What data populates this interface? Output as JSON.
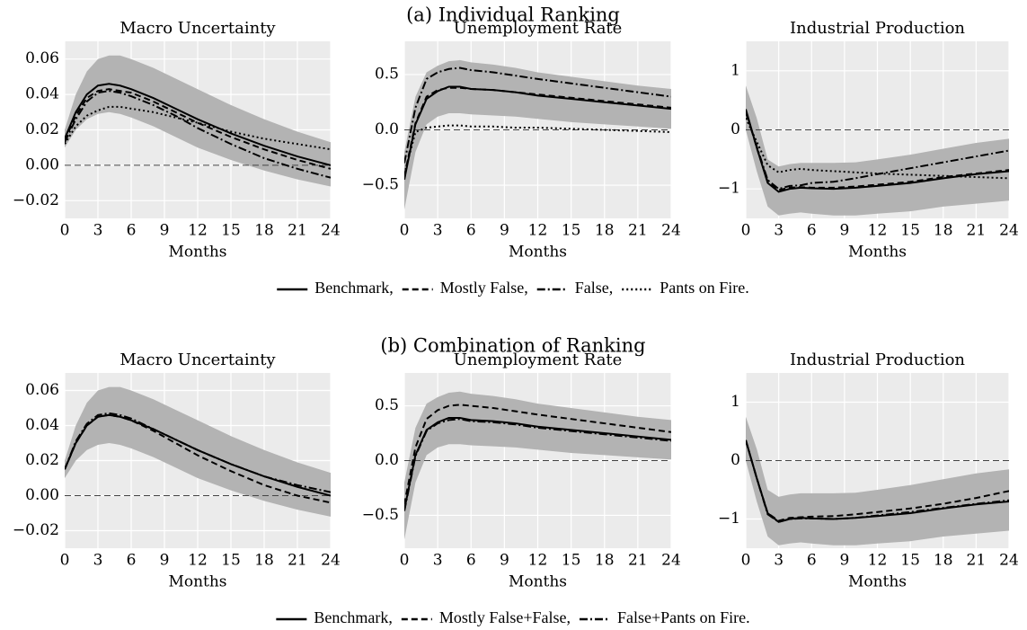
{
  "sections": [
    {
      "title": "(a) Individual Ranking"
    },
    {
      "title": "(b) Combination of Ranking"
    }
  ],
  "chart_data": [
    {
      "type": "line",
      "title": "Macro Uncertainty",
      "xlabel": "Months",
      "x": [
        0,
        1,
        2,
        3,
        4,
        5,
        6,
        8,
        10,
        12,
        15,
        18,
        21,
        24
      ],
      "xlim": [
        0,
        24
      ],
      "xticks": [
        0,
        3,
        6,
        9,
        12,
        15,
        18,
        21,
        24
      ],
      "ylim": [
        -0.03,
        0.07
      ],
      "yticks": [
        {
          "value": -0.02,
          "label": "−0.02"
        },
        {
          "value": 0,
          "label": "0.00"
        },
        0.02,
        0.04,
        0.06
      ],
      "grid": true,
      "hline": 0,
      "band": {
        "color": "#b3b3b3",
        "lower": [
          0.01,
          0.02,
          0.026,
          0.029,
          0.03,
          0.029,
          0.027,
          0.022,
          0.016,
          0.01,
          0.003,
          -0.003,
          -0.008,
          -0.012
        ],
        "upper": [
          0.02,
          0.04,
          0.053,
          0.06,
          0.062,
          0.062,
          0.06,
          0.055,
          0.049,
          0.043,
          0.034,
          0.026,
          0.019,
          0.013
        ]
      },
      "series": [
        {
          "name": "Benchmark,",
          "color": "#000000",
          "dash": "solid",
          "values": [
            0.015,
            0.03,
            0.04,
            0.045,
            0.046,
            0.045,
            0.043,
            0.038,
            0.032,
            0.026,
            0.018,
            0.011,
            0.005,
            0.0
          ]
        },
        {
          "name": "Mostly False,",
          "color": "#000000",
          "dash": "dashed",
          "values": [
            0.014,
            0.028,
            0.038,
            0.042,
            0.043,
            0.042,
            0.041,
            0.036,
            0.03,
            0.024,
            0.016,
            0.009,
            0.003,
            -0.002
          ]
        },
        {
          "name": "False,",
          "color": "#000000",
          "dash": "dashdot",
          "values": [
            0.013,
            0.026,
            0.036,
            0.041,
            0.042,
            0.041,
            0.039,
            0.034,
            0.028,
            0.021,
            0.012,
            0.004,
            -0.002,
            -0.007
          ]
        },
        {
          "name": "Pants on Fire.",
          "color": "#000000",
          "dash": "dotted",
          "values": [
            0.012,
            0.022,
            0.028,
            0.031,
            0.033,
            0.033,
            0.032,
            0.03,
            0.027,
            0.024,
            0.019,
            0.015,
            0.012,
            0.009
          ]
        }
      ]
    },
    {
      "type": "line",
      "title": "Unemployment Rate",
      "xlabel": "Months",
      "x": [
        0,
        1,
        2,
        3,
        4,
        5,
        6,
        8,
        10,
        12,
        15,
        18,
        21,
        24
      ],
      "xlim": [
        0,
        24
      ],
      "xticks": [
        0,
        3,
        6,
        9,
        12,
        15,
        18,
        21,
        24
      ],
      "ylim": [
        -0.8,
        0.8
      ],
      "yticks": [
        {
          "value": -0.5,
          "label": "−0.5"
        },
        {
          "value": 0,
          "label": "0.0"
        },
        0.5
      ],
      "grid": true,
      "hline": 0,
      "band": {
        "color": "#b3b3b3",
        "lower": [
          -0.72,
          -0.2,
          0.05,
          0.12,
          0.15,
          0.15,
          0.14,
          0.13,
          0.12,
          0.1,
          0.07,
          0.05,
          0.03,
          0.01
        ],
        "upper": [
          -0.2,
          0.3,
          0.52,
          0.58,
          0.62,
          0.63,
          0.61,
          0.59,
          0.56,
          0.52,
          0.48,
          0.44,
          0.4,
          0.37
        ]
      },
      "series": [
        {
          "name": "Benchmark,",
          "color": "#000000",
          "dash": "solid",
          "values": [
            -0.45,
            0.05,
            0.28,
            0.35,
            0.39,
            0.39,
            0.37,
            0.36,
            0.34,
            0.31,
            0.28,
            0.25,
            0.22,
            0.19
          ]
        },
        {
          "name": "Mostly False,",
          "color": "#000000",
          "dash": "dashed",
          "values": [
            -0.42,
            0.06,
            0.3,
            0.36,
            0.38,
            0.38,
            0.37,
            0.36,
            0.34,
            0.32,
            0.29,
            0.26,
            0.23,
            0.2
          ]
        },
        {
          "name": "False,",
          "color": "#000000",
          "dash": "dashdot",
          "values": [
            -0.3,
            0.2,
            0.46,
            0.52,
            0.55,
            0.56,
            0.54,
            0.52,
            0.49,
            0.46,
            0.42,
            0.38,
            0.34,
            0.3
          ]
        },
        {
          "name": "Pants on Fire.",
          "color": "#000000",
          "dash": "dotted",
          "values": [
            -0.4,
            -0.02,
            0.02,
            0.03,
            0.04,
            0.04,
            0.03,
            0.03,
            0.02,
            0.02,
            0.01,
            0.0,
            -0.01,
            -0.02
          ]
        }
      ]
    },
    {
      "type": "line",
      "title": "Industrial Production",
      "xlabel": "Months",
      "x": [
        0,
        1,
        2,
        3,
        4,
        5,
        6,
        8,
        10,
        12,
        15,
        18,
        21,
        24
      ],
      "xlim": [
        0,
        24
      ],
      "xticks": [
        0,
        3,
        6,
        9,
        12,
        15,
        18,
        21,
        24
      ],
      "ylim": [
        -1.5,
        1.5
      ],
      "yticks": [
        {
          "value": -1,
          "label": "−1"
        },
        0,
        1
      ],
      "grid": true,
      "hline": 0,
      "band": {
        "color": "#b3b3b3",
        "lower": [
          0,
          -0.7,
          -1.3,
          -1.45,
          -1.42,
          -1.4,
          -1.42,
          -1.45,
          -1.45,
          -1.42,
          -1.38,
          -1.3,
          -1.25,
          -1.2
        ],
        "upper": [
          0.75,
          0.2,
          -0.5,
          -0.62,
          -0.58,
          -0.56,
          -0.56,
          -0.56,
          -0.55,
          -0.5,
          -0.42,
          -0.32,
          -0.22,
          -0.15
        ]
      },
      "series": [
        {
          "name": "Benchmark,",
          "color": "#000000",
          "dash": "solid",
          "values": [
            0.35,
            -0.3,
            -0.9,
            -1.05,
            -1.0,
            -0.98,
            -0.99,
            -1.0,
            -0.98,
            -0.95,
            -0.9,
            -0.82,
            -0.75,
            -0.7
          ]
        },
        {
          "name": "Mostly False,",
          "color": "#000000",
          "dash": "dashed",
          "values": [
            0.33,
            -0.3,
            -0.88,
            -1.02,
            -0.98,
            -0.97,
            -0.98,
            -0.98,
            -0.96,
            -0.93,
            -0.88,
            -0.8,
            -0.74,
            -0.68
          ]
        },
        {
          "name": "False,",
          "color": "#000000",
          "dash": "dashdot",
          "values": [
            0.3,
            -0.28,
            -0.85,
            -1.0,
            -0.95,
            -0.94,
            -0.9,
            -0.88,
            -0.82,
            -0.75,
            -0.65,
            -0.55,
            -0.45,
            -0.35
          ]
        },
        {
          "name": "Pants on Fire.",
          "color": "#000000",
          "dash": "dotted",
          "values": [
            0.2,
            -0.2,
            -0.6,
            -0.72,
            -0.68,
            -0.66,
            -0.68,
            -0.7,
            -0.72,
            -0.74,
            -0.76,
            -0.78,
            -0.8,
            -0.82
          ]
        }
      ]
    },
    {
      "type": "line",
      "title": "Macro Uncertainty",
      "xlabel": "Months",
      "x": [
        0,
        1,
        2,
        3,
        4,
        5,
        6,
        8,
        10,
        12,
        15,
        18,
        21,
        24
      ],
      "xlim": [
        0,
        24
      ],
      "xticks": [
        0,
        3,
        6,
        9,
        12,
        15,
        18,
        21,
        24
      ],
      "ylim": [
        -0.03,
        0.07
      ],
      "yticks": [
        {
          "value": -0.02,
          "label": "−0.02"
        },
        {
          "value": 0,
          "label": "0.00"
        },
        0.02,
        0.04,
        0.06
      ],
      "grid": true,
      "hline": 0,
      "band": {
        "color": "#b3b3b3",
        "lower": [
          0.01,
          0.02,
          0.026,
          0.029,
          0.03,
          0.029,
          0.027,
          0.022,
          0.016,
          0.01,
          0.003,
          -0.003,
          -0.008,
          -0.012
        ],
        "upper": [
          0.02,
          0.04,
          0.053,
          0.06,
          0.062,
          0.062,
          0.06,
          0.055,
          0.049,
          0.043,
          0.034,
          0.026,
          0.019,
          0.013
        ]
      },
      "series": [
        {
          "name": "Benchmark,",
          "color": "#000000",
          "dash": "solid",
          "values": [
            0.015,
            0.03,
            0.04,
            0.045,
            0.046,
            0.045,
            0.043,
            0.038,
            0.032,
            0.026,
            0.018,
            0.011,
            0.005,
            0.0
          ]
        },
        {
          "name": "Mostly False+False,",
          "color": "#000000",
          "dash": "dashed",
          "values": [
            0.015,
            0.03,
            0.04,
            0.045,
            0.046,
            0.045,
            0.043,
            0.037,
            0.03,
            0.023,
            0.014,
            0.006,
            0.0,
            -0.004
          ]
        },
        {
          "name": "False+Pants on Fire.",
          "color": "#000000",
          "dash": "dashdot",
          "values": [
            0.015,
            0.031,
            0.041,
            0.046,
            0.047,
            0.046,
            0.044,
            0.038,
            0.032,
            0.026,
            0.018,
            0.011,
            0.006,
            0.002
          ]
        }
      ]
    },
    {
      "type": "line",
      "title": "Unemployment Rate",
      "xlabel": "Months",
      "x": [
        0,
        1,
        2,
        3,
        4,
        5,
        6,
        8,
        10,
        12,
        15,
        18,
        21,
        24
      ],
      "xlim": [
        0,
        24
      ],
      "xticks": [
        0,
        3,
        6,
        9,
        12,
        15,
        18,
        21,
        24
      ],
      "ylim": [
        -0.8,
        0.8
      ],
      "yticks": [
        {
          "value": -0.5,
          "label": "−0.5"
        },
        {
          "value": 0,
          "label": "0.0"
        },
        0.5
      ],
      "grid": true,
      "hline": 0,
      "band": {
        "color": "#b3b3b3",
        "lower": [
          -0.72,
          -0.2,
          0.05,
          0.12,
          0.15,
          0.15,
          0.14,
          0.13,
          0.12,
          0.1,
          0.07,
          0.05,
          0.03,
          0.01
        ],
        "upper": [
          -0.2,
          0.3,
          0.52,
          0.58,
          0.62,
          0.63,
          0.61,
          0.59,
          0.56,
          0.52,
          0.48,
          0.44,
          0.4,
          0.37
        ]
      },
      "series": [
        {
          "name": "Benchmark,",
          "color": "#000000",
          "dash": "solid",
          "values": [
            -0.45,
            0.05,
            0.28,
            0.35,
            0.39,
            0.39,
            0.37,
            0.36,
            0.34,
            0.31,
            0.28,
            0.25,
            0.22,
            0.19
          ]
        },
        {
          "name": "Mostly False+False,",
          "color": "#000000",
          "dash": "dashed",
          "values": [
            -0.4,
            0.12,
            0.38,
            0.46,
            0.5,
            0.51,
            0.5,
            0.48,
            0.45,
            0.42,
            0.38,
            0.34,
            0.3,
            0.26
          ]
        },
        {
          "name": "False+Pants on Fire.",
          "color": "#000000",
          "dash": "dashdot",
          "values": [
            -0.46,
            0.04,
            0.27,
            0.34,
            0.37,
            0.38,
            0.36,
            0.35,
            0.33,
            0.3,
            0.27,
            0.24,
            0.21,
            0.18
          ]
        }
      ]
    },
    {
      "type": "line",
      "title": "Industrial Production",
      "xlabel": "Months",
      "x": [
        0,
        1,
        2,
        3,
        4,
        5,
        6,
        8,
        10,
        12,
        15,
        18,
        21,
        24
      ],
      "xlim": [
        0,
        24
      ],
      "xticks": [
        0,
        3,
        6,
        9,
        12,
        15,
        18,
        21,
        24
      ],
      "ylim": [
        -1.5,
        1.5
      ],
      "yticks": [
        {
          "value": -1,
          "label": "−1"
        },
        0,
        1
      ],
      "grid": true,
      "hline": 0,
      "band": {
        "color": "#b3b3b3",
        "lower": [
          0,
          -0.7,
          -1.3,
          -1.45,
          -1.42,
          -1.4,
          -1.42,
          -1.45,
          -1.45,
          -1.42,
          -1.38,
          -1.3,
          -1.25,
          -1.2
        ],
        "upper": [
          0.75,
          0.2,
          -0.5,
          -0.62,
          -0.58,
          -0.56,
          -0.56,
          -0.56,
          -0.55,
          -0.5,
          -0.42,
          -0.32,
          -0.22,
          -0.15
        ]
      },
      "series": [
        {
          "name": "Benchmark,",
          "color": "#000000",
          "dash": "solid",
          "values": [
            0.35,
            -0.3,
            -0.9,
            -1.05,
            -1.0,
            -0.98,
            -0.99,
            -1.0,
            -0.98,
            -0.95,
            -0.9,
            -0.82,
            -0.75,
            -0.7
          ]
        },
        {
          "name": "Mostly False+False,",
          "color": "#000000",
          "dash": "dashed",
          "values": [
            0.35,
            -0.3,
            -0.9,
            -1.03,
            -0.98,
            -0.97,
            -0.96,
            -0.95,
            -0.92,
            -0.88,
            -0.82,
            -0.74,
            -0.64,
            -0.52
          ]
        },
        {
          "name": "False+Pants on Fire.",
          "color": "#000000",
          "dash": "dashdot",
          "values": [
            0.35,
            -0.3,
            -0.92,
            -1.05,
            -1.0,
            -0.99,
            -0.99,
            -1.0,
            -0.98,
            -0.94,
            -0.88,
            -0.81,
            -0.74,
            -0.68
          ]
        }
      ]
    }
  ]
}
